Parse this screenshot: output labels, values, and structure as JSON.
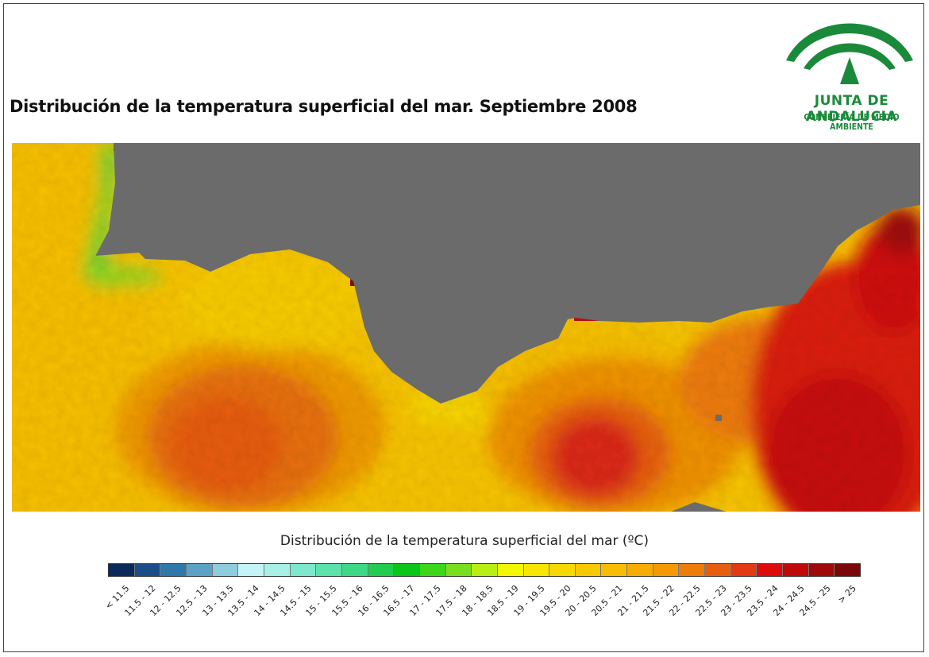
{
  "title": "Distribución de la temperatura superficial del mar. Septiembre 2008",
  "logo": {
    "org": "JUNTA DE ANDALUCIA",
    "dept": "CONSEJERÍA DE MEDIO AMBIENTE",
    "color": "#1a8a3a"
  },
  "map": {
    "land_color": "#6b6b6b"
  },
  "legend": {
    "title": "Distribución de la temperatura superficial del mar (ºC)",
    "classes": [
      {
        "label": "< 11.5",
        "color": "#0a2a5e"
      },
      {
        "label": "11.5 - 12",
        "color": "#1a4e8a"
      },
      {
        "label": "12 - 12.5",
        "color": "#2f78aa"
      },
      {
        "label": "12.5 - 13",
        "color": "#5aa2c6"
      },
      {
        "label": "13 - 13.5",
        "color": "#8ecde0"
      },
      {
        "label": "13.5 - 14",
        "color": "#c4f4f6"
      },
      {
        "label": "14 - 14.5",
        "color": "#a6f0e4"
      },
      {
        "label": "14.5 - 15",
        "color": "#7de8cc"
      },
      {
        "label": "15 - 15.5",
        "color": "#5de2ac"
      },
      {
        "label": "15.5 - 16",
        "color": "#3fd886"
      },
      {
        "label": "16 - 16.5",
        "color": "#22cc4e"
      },
      {
        "label": "16.5 - 17",
        "color": "#0cc41a"
      },
      {
        "label": "17 - 17.5",
        "color": "#3cd61a"
      },
      {
        "label": "17.5 - 18",
        "color": "#7ade1e"
      },
      {
        "label": "18 - 18.5",
        "color": "#b8ee14"
      },
      {
        "label": "18.5 - 19",
        "color": "#f2f600"
      },
      {
        "label": "19 - 19.5",
        "color": "#f8e600"
      },
      {
        "label": "19.5 - 20",
        "color": "#f8d800"
      },
      {
        "label": "20 - 20.5",
        "color": "#f8c800"
      },
      {
        "label": "20.5 - 21",
        "color": "#f8bc00"
      },
      {
        "label": "21 - 21.5",
        "color": "#f6ac00"
      },
      {
        "label": "21.5 - 22",
        "color": "#f49a00"
      },
      {
        "label": "22 - 22.5",
        "color": "#ee7c08"
      },
      {
        "label": "22.5 - 23",
        "color": "#e85e10"
      },
      {
        "label": "23 - 23.5",
        "color": "#e23a14"
      },
      {
        "label": "23.5 - 24",
        "color": "#dc0c0c"
      },
      {
        "label": "24 - 24.5",
        "color": "#c00a0a"
      },
      {
        "label": "24.5 - 25",
        "color": "#9e0a0a"
      },
      {
        "label": "> 25",
        "color": "#7a0808"
      }
    ]
  }
}
